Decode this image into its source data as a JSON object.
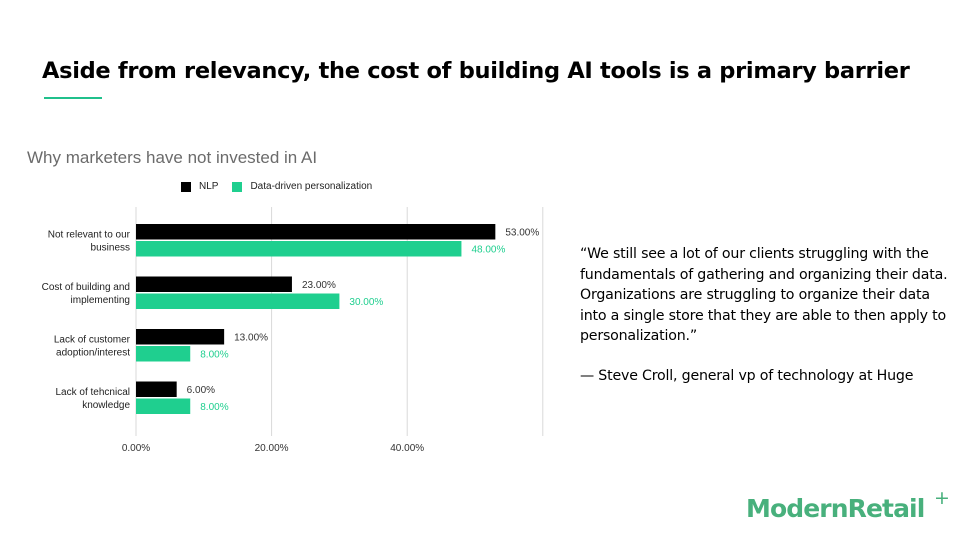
{
  "slide": {
    "title": "Aside from relevancy, the cost of building AI tools is a primary barrier",
    "accent_color": "#20c08c"
  },
  "chart_data": {
    "type": "bar",
    "orientation": "horizontal",
    "title": "Why marketers have not invested in AI",
    "categories": [
      "Not relevant to our business",
      "Cost of building and implementing",
      "Lack of customer adoption/interest",
      "Lack of tehcnical knowledge"
    ],
    "series": [
      {
        "name": "NLP",
        "color": "#000000",
        "values": [
          53,
          23,
          13,
          6
        ],
        "labels": [
          "53.00%",
          "23.00%",
          "13.00%",
          "6.00%"
        ]
      },
      {
        "name": "Data-driven personalization",
        "color": "#1fcf8f",
        "values": [
          48,
          30,
          8,
          8
        ],
        "labels": [
          "48.00%",
          "30.00%",
          "8.00%",
          "8.00%"
        ]
      }
    ],
    "x_ticks": [
      0,
      20,
      40
    ],
    "x_tick_labels": [
      "0.00%",
      "20.00%",
      "40.00%"
    ],
    "xlim": [
      0,
      60
    ],
    "grid": true,
    "legend_position": "top"
  },
  "quote": {
    "text": "“We still see a lot of our clients struggling with the fundamentals of gathering and organizing their data. Organizations are struggling to organize their data into a single store that they are able to then apply to personalization.”",
    "attribution": "— Steve Croll, general vp of technology at Huge"
  },
  "brand": {
    "name": "ModernRetail",
    "plus": "+",
    "color": "#48b07c"
  }
}
